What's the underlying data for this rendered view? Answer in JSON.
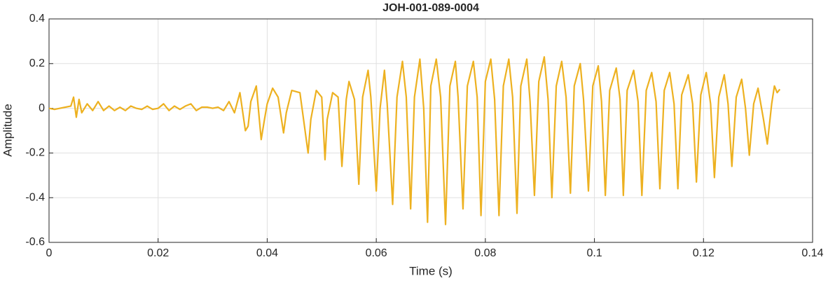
{
  "chart_data": {
    "type": "line",
    "title": "JOH-001-089-0004",
    "x_label": "Time (s)",
    "y_label": "Amplitude",
    "xlim": [
      0,
      0.14
    ],
    "xticks": [
      0,
      0.02,
      0.04,
      0.06,
      0.08,
      0.1,
      0.12,
      0.14
    ],
    "ylim": [
      -0.6,
      0.4
    ],
    "yticks": [
      -0.6,
      -0.4,
      -0.2,
      0,
      0.2,
      0.4
    ],
    "grid": true,
    "series": [
      {
        "color": "#EDB120",
        "x": [
          0,
          0.001,
          0.002,
          0.003,
          0.004,
          0.0045,
          0.005,
          0.0055,
          0.006,
          0.007,
          0.008,
          0.009,
          0.01,
          0.011,
          0.012,
          0.013,
          0.014,
          0.015,
          0.016,
          0.017,
          0.018,
          0.019,
          0.02,
          0.021,
          0.022,
          0.023,
          0.024,
          0.025,
          0.026,
          0.027,
          0.028,
          0.029,
          0.03,
          0.031,
          0.032,
          0.033,
          0.034,
          0.035,
          0.036,
          0.0365,
          0.037,
          0.038,
          0.0389,
          0.0395,
          0.04,
          0.041,
          0.042,
          0.043,
          0.0435,
          0.0445,
          0.046,
          0.0475,
          0.048,
          0.049,
          0.05,
          0.0506,
          0.051,
          0.052,
          0.053,
          0.0537,
          0.0545,
          0.055,
          0.056,
          0.0568,
          0.0575,
          0.0585,
          0.059,
          0.06,
          0.0607,
          0.0615,
          0.062,
          0.063,
          0.0638,
          0.0648,
          0.0655,
          0.0663,
          0.067,
          0.068,
          0.0687,
          0.0694,
          0.07,
          0.071,
          0.0718,
          0.0727,
          0.0735,
          0.0745,
          0.075,
          0.0759,
          0.0767,
          0.0778,
          0.0785,
          0.0792,
          0.08,
          0.081,
          0.0817,
          0.0825,
          0.0833,
          0.0843,
          0.085,
          0.0858,
          0.0865,
          0.0876,
          0.0882,
          0.089,
          0.0898,
          0.0908,
          0.0915,
          0.0922,
          0.093,
          0.094,
          0.0948,
          0.0956,
          0.0963,
          0.0974,
          0.098,
          0.0989,
          0.0997,
          0.1007,
          0.1013,
          0.102,
          0.1028,
          0.104,
          0.1047,
          0.1053,
          0.106,
          0.1072,
          0.108,
          0.1087,
          0.1095,
          0.1105,
          0.1113,
          0.112,
          0.1128,
          0.1138,
          0.1146,
          0.1153,
          0.116,
          0.1172,
          0.118,
          0.1187,
          0.1195,
          0.1205,
          0.1213,
          0.122,
          0.1228,
          0.1238,
          0.1245,
          0.1252,
          0.126,
          0.127,
          0.1277,
          0.1284,
          0.1292,
          0.13,
          0.131,
          0.1317,
          0.1325,
          0.133,
          0.1335,
          0.134
        ],
        "values": [
          0,
          -0.005,
          0,
          0.005,
          0.01,
          0.05,
          -0.04,
          0.04,
          -0.02,
          0.02,
          -0.01,
          0.03,
          -0.01,
          0.01,
          -0.01,
          0.005,
          -0.01,
          0.01,
          0,
          -0.005,
          0.01,
          -0.005,
          0,
          0.02,
          -0.01,
          0.01,
          -0.005,
          0.01,
          0.02,
          -0.01,
          0.005,
          0.005,
          0,
          0.005,
          -0.01,
          0.03,
          -0.02,
          0.07,
          -0.1,
          -0.08,
          0.03,
          0.1,
          -0.14,
          -0.05,
          0.02,
          0.09,
          0.05,
          -0.11,
          -0.02,
          0.08,
          0.07,
          -0.2,
          -0.05,
          0.08,
          0.05,
          -0.23,
          -0.05,
          0.07,
          0.05,
          -0.26,
          0.04,
          0.12,
          0.04,
          -0.34,
          0.05,
          0.17,
          0.05,
          -0.37,
          0,
          0.17,
          0.02,
          -0.43,
          0.05,
          0.21,
          0.05,
          -0.45,
          0.05,
          0.22,
          0,
          -0.51,
          0.1,
          0.22,
          0.05,
          -0.52,
          0.1,
          0.21,
          0.05,
          -0.45,
          0.1,
          0.21,
          0.05,
          -0.48,
          0.12,
          0.22,
          0.04,
          -0.48,
          0.1,
          0.22,
          0.05,
          -0.47,
          0.1,
          0.22,
          0.03,
          -0.39,
          0.12,
          0.23,
          0.04,
          -0.4,
          0.1,
          0.21,
          0.05,
          -0.38,
          0.1,
          0.2,
          0.04,
          -0.37,
          0.1,
          0.19,
          0.03,
          -0.39,
          0.08,
          0.18,
          0.04,
          -0.39,
          0.08,
          0.17,
          0.03,
          -0.39,
          0.08,
          0.16,
          0.03,
          -0.36,
          0.08,
          0.16,
          0.02,
          -0.36,
          0.06,
          0.15,
          0.02,
          -0.33,
          0.06,
          0.16,
          0.02,
          -0.31,
          0.05,
          0.15,
          0.02,
          -0.26,
          0.05,
          0.13,
          0,
          -0.21,
          0.02,
          0.09,
          -0.05,
          -0.16,
          0.02,
          0.1,
          0.07,
          0.085
        ]
      }
    ]
  }
}
